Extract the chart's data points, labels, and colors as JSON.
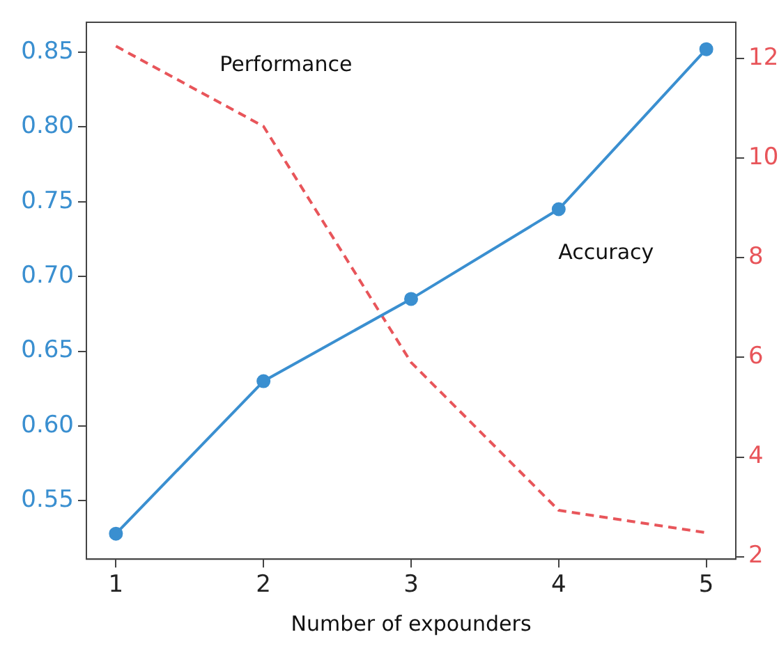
{
  "chart_data": {
    "type": "line",
    "xlabel": "Number of expounders",
    "x": [
      1,
      2,
      3,
      4,
      5
    ],
    "xlim": [
      0.8,
      5.2
    ],
    "xticks": [
      1,
      2,
      3,
      4,
      5
    ],
    "ylim": [
      0.511,
      0.87
    ],
    "yticks": [
      {
        "value": 0.55,
        "label": "0.55"
      },
      {
        "value": 0.6,
        "label": "0.60"
      },
      {
        "value": 0.65,
        "label": "0.65"
      },
      {
        "value": 0.7,
        "label": "0.70"
      },
      {
        "value": 0.75,
        "label": "0.75"
      },
      {
        "value": 0.8,
        "label": "0.80"
      },
      {
        "value": 0.85,
        "label": "0.85"
      }
    ],
    "y2lim": [
      1.95,
      12.73
    ],
    "y2ticks": [
      2,
      4,
      6,
      8,
      10,
      12
    ],
    "grid": false,
    "legend": false,
    "series": [
      {
        "name": "Accuracy",
        "color": "#3a8fd0",
        "values": [
          0.528,
          0.63,
          0.685,
          0.745,
          0.852
        ],
        "marker": "circle",
        "line_style": "solid"
      },
      {
        "name": "Performance",
        "color": "#e8555a",
        "axis": "y2",
        "values": [
          12.25,
          10.64,
          5.9,
          2.93,
          2.48
        ],
        "marker": "none",
        "line_style": "dashed"
      }
    ]
  }
}
